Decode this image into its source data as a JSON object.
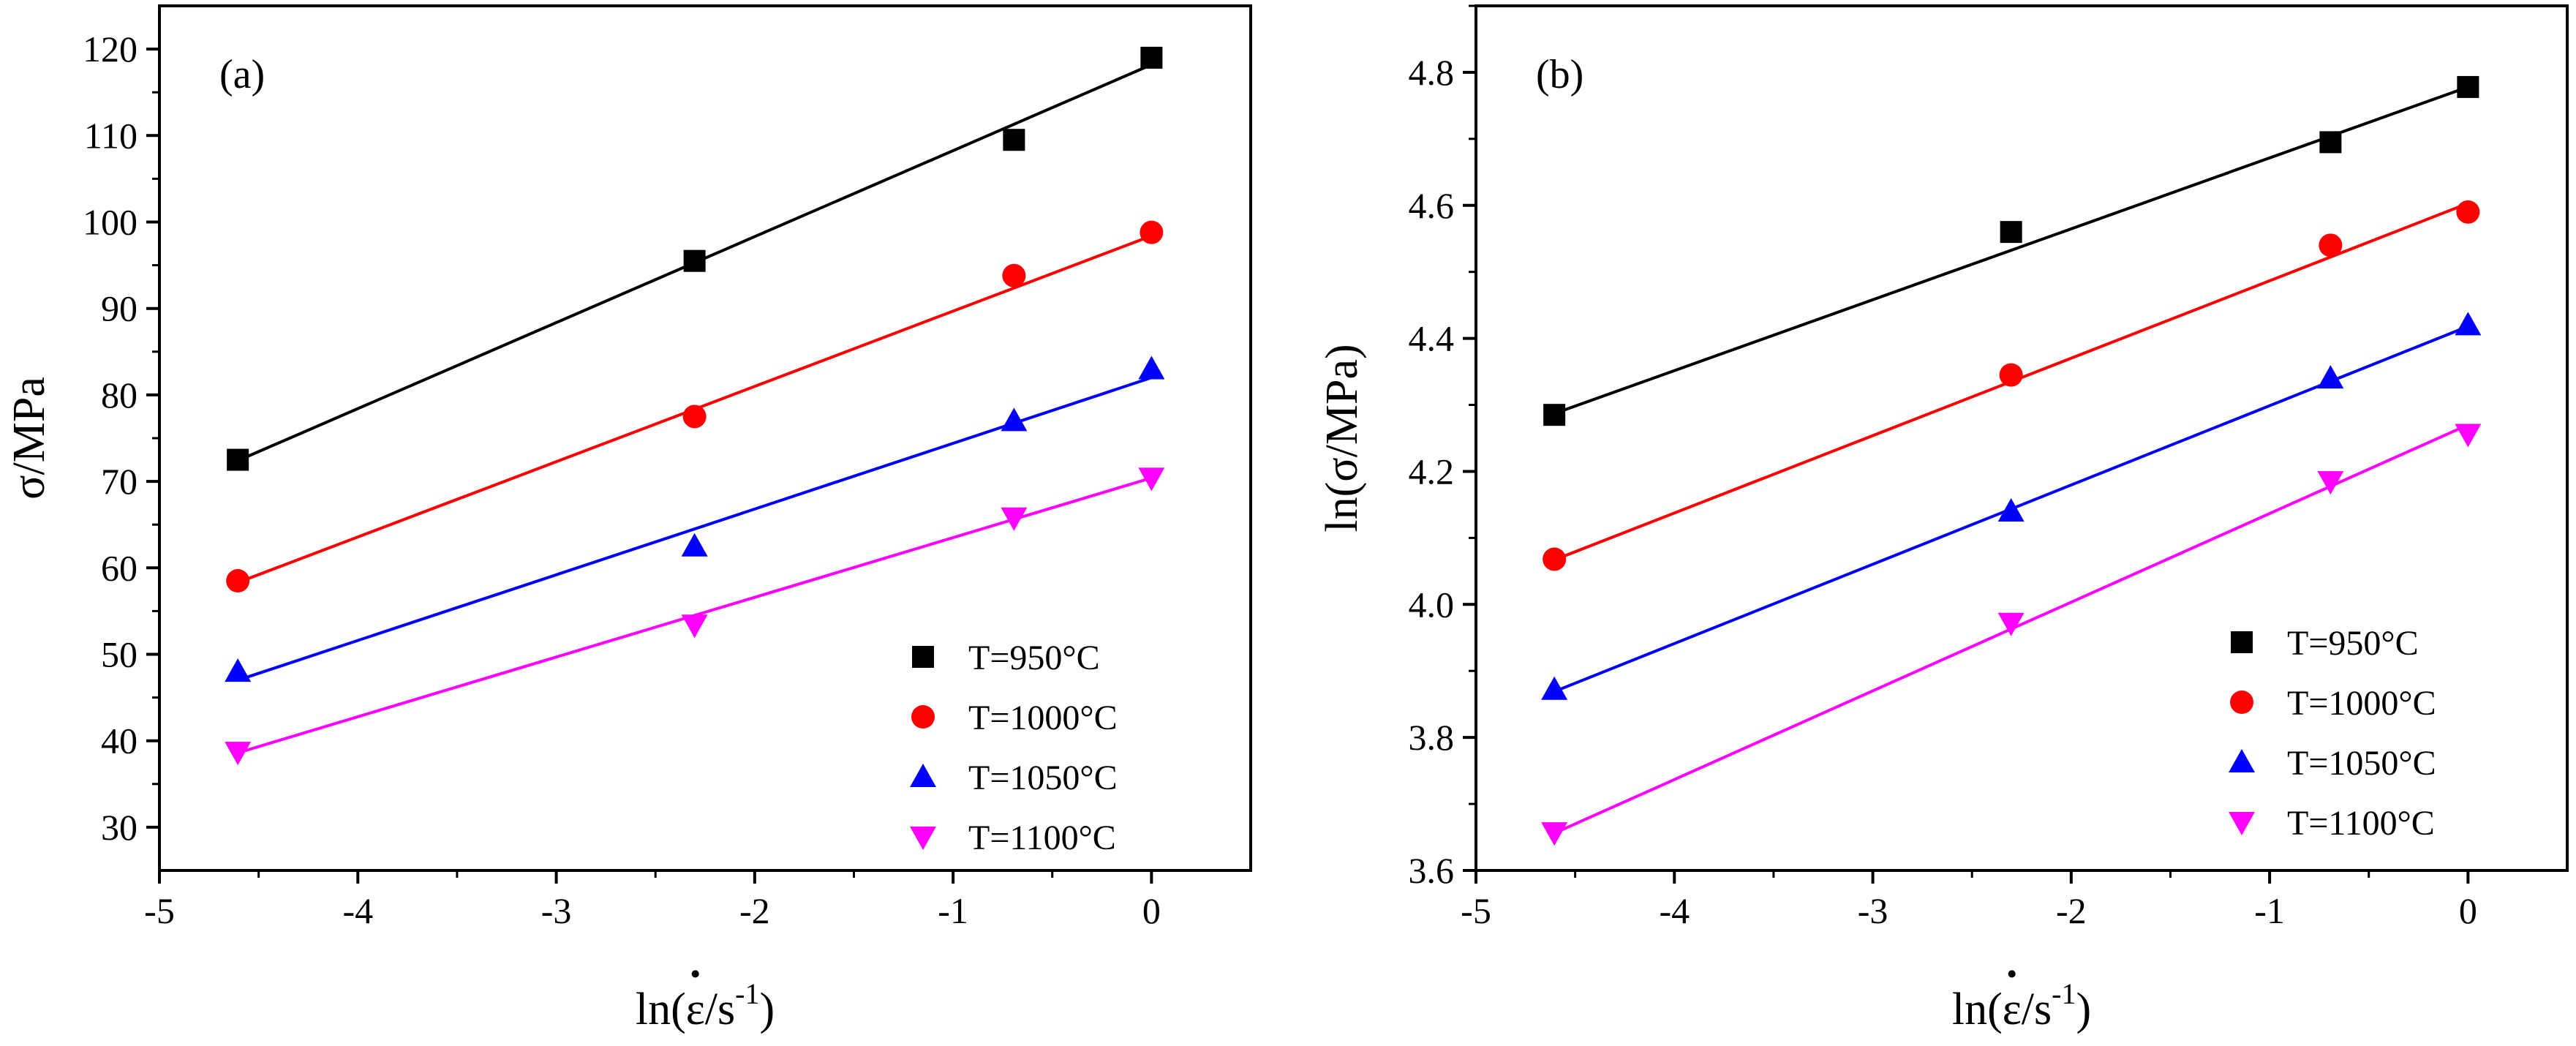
{
  "chart_data": [
    {
      "type": "scatter",
      "panel_label": "(a)",
      "xlabel": "ln(ε̇/s⁻¹)",
      "xlabel_parts": {
        "prefix": "ln(",
        "epsilon": "ε",
        "dot": "·",
        "mid": "/s",
        "sup": "-1",
        "suffix": ")"
      },
      "ylabel": "σ/MPa",
      "xlim": [
        -5,
        0.5
      ],
      "ylim": [
        25,
        125
      ],
      "xticks": [
        -5,
        -4,
        -3,
        -2,
        -1,
        0
      ],
      "xtick_labels": [
        "-5",
        "-4",
        "-3",
        "-2",
        "-1",
        "0"
      ],
      "yticks": [
        30,
        40,
        50,
        60,
        70,
        80,
        90,
        100,
        110,
        120
      ],
      "ytick_labels": [
        "30",
        "40",
        "50",
        "60",
        "70",
        "80",
        "90",
        "100",
        "110",
        "120"
      ],
      "legend_position": "bottom-right",
      "x": [
        -4.605,
        -2.303,
        -0.693,
        0
      ],
      "series": [
        {
          "name": "T=950°C",
          "color": "#000000",
          "marker": "square",
          "values": [
            72.5,
            95.5,
            109.5,
            119.0
          ],
          "fit": [
            72.4,
            118.2
          ]
        },
        {
          "name": "T=1000°C",
          "color": "#ff0000",
          "marker": "circle",
          "values": [
            58.5,
            77.5,
            93.8,
            98.8
          ],
          "fit": [
            58.3,
            98.4
          ]
        },
        {
          "name": "T=1050°C",
          "color": "#0000ff",
          "marker": "triangle-up",
          "values": [
            48.0,
            62.5,
            77.0,
            83.0
          ],
          "fit": [
            47.0,
            82.0
          ]
        },
        {
          "name": "T=1100°C",
          "color": "#ff00ff",
          "marker": "triangle-down",
          "values": [
            38.7,
            53.4,
            65.8,
            70.4
          ],
          "fit": [
            38.6,
            70.4
          ]
        }
      ]
    },
    {
      "type": "scatter",
      "panel_label": "(b)",
      "xlabel": "ln(ε̇/s⁻¹)",
      "xlabel_parts": {
        "prefix": "ln(",
        "epsilon": "ε",
        "dot": "·",
        "mid": "/s",
        "sup": "-1",
        "suffix": ")"
      },
      "ylabel": "ln(σ/MPa)",
      "xlim": [
        -5,
        0.5
      ],
      "ylim": [
        3.6,
        4.9
      ],
      "xticks": [
        -5,
        -4,
        -3,
        -2,
        -1,
        0
      ],
      "xtick_labels": [
        "-5",
        "-4",
        "-3",
        "-2",
        "-1",
        "0"
      ],
      "yticks": [
        3.6,
        3.8,
        4.0,
        4.2,
        4.4,
        4.6,
        4.8
      ],
      "ytick_labels": [
        "3.6",
        "3.8",
        "4.0",
        "4.2",
        "4.4",
        "4.6",
        "4.8"
      ],
      "legend_position": "bottom-right",
      "x": [
        -4.605,
        -2.303,
        -0.693,
        0
      ],
      "series": [
        {
          "name": "T=950°C",
          "color": "#000000",
          "marker": "square",
          "values": [
            4.285,
            4.56,
            4.695,
            4.778
          ],
          "fit": [
            4.287,
            4.778
          ]
        },
        {
          "name": "T=1000°C",
          "color": "#ff0000",
          "marker": "circle",
          "values": [
            4.068,
            4.345,
            4.54,
            4.59
          ],
          "fit": [
            4.067,
            4.603
          ]
        },
        {
          "name": "T=1050°C",
          "color": "#0000ff",
          "marker": "triangle-up",
          "values": [
            3.872,
            4.14,
            4.34,
            4.42
          ],
          "fit": [
            3.869,
            4.418
          ]
        },
        {
          "name": "T=1100°C",
          "color": "#ff00ff",
          "marker": "triangle-down",
          "values": [
            3.657,
            3.972,
            4.185,
            4.256
          ],
          "fit": [
            3.656,
            4.27
          ]
        }
      ]
    }
  ]
}
